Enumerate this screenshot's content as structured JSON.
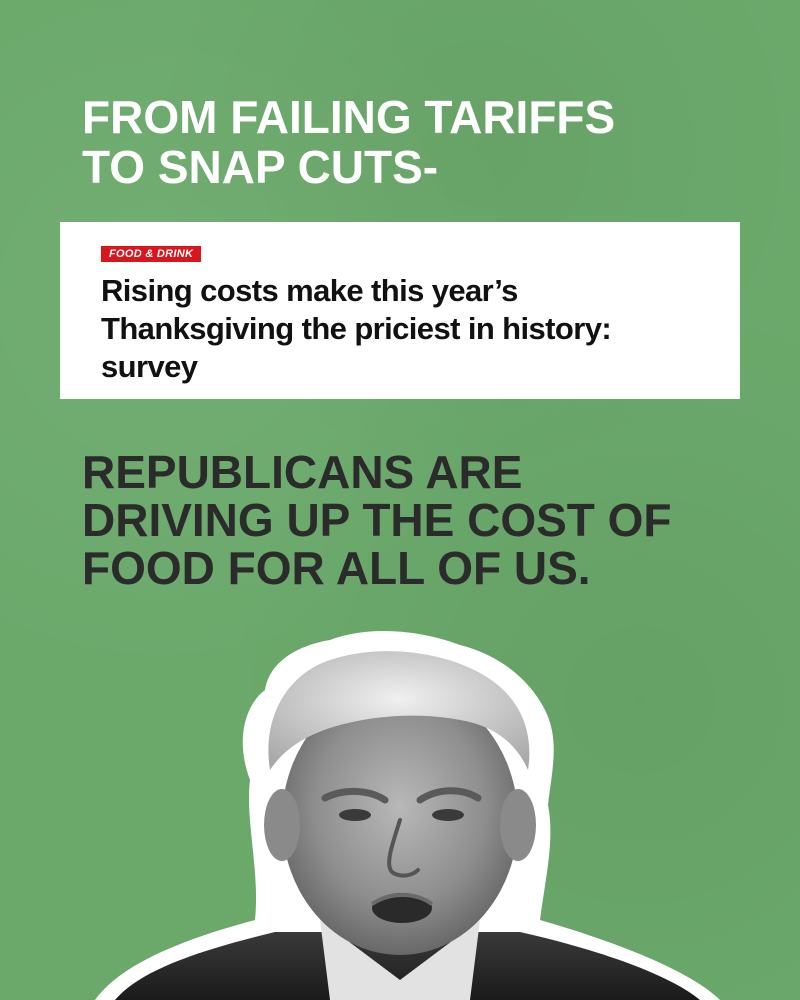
{
  "headline_top": {
    "line1": "FROM FAILING TARIFFS",
    "line2": "TO SNAP CUTS-"
  },
  "clipping": {
    "tag": "FOOD & DRINK",
    "title_line1": "Rising costs make this year’s",
    "title_line2": "Thanksgiving the priciest in history:",
    "title_line3": "survey",
    "tag_color": "#d9161c"
  },
  "headline_main": {
    "line1": "REPUBLICANS ARE",
    "line2": "DRIVING UP THE COST OF",
    "line3": "FOOD FOR ALL OF US."
  },
  "colors": {
    "background": "#6ba96b",
    "headline_top": "#ffffff",
    "headline_main": "#2b2b2b"
  }
}
